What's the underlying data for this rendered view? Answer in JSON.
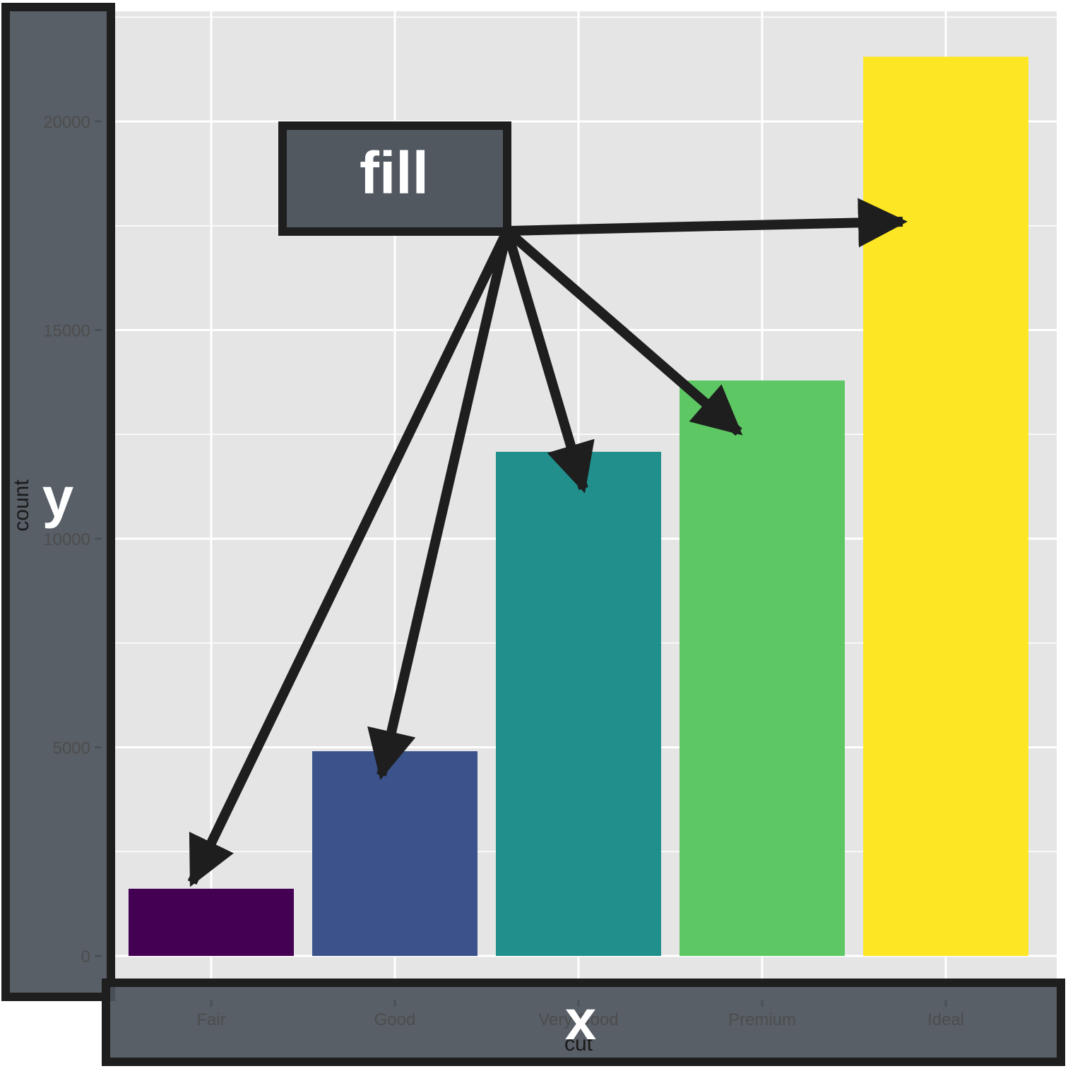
{
  "chart_data": {
    "type": "bar",
    "categories": [
      "Fair",
      "Good",
      "Very Good",
      "Premium",
      "Ideal"
    ],
    "values": [
      1610,
      4906,
      12082,
      13791,
      21551
    ],
    "colors": [
      "#440154",
      "#3b528b",
      "#21908c",
      "#5dc863",
      "#fde725"
    ],
    "xlabel": "cut",
    "ylabel": "count",
    "ylim": [
      0,
      22700
    ],
    "yticks": [
      0,
      5000,
      10000,
      15000,
      20000
    ],
    "grid": true,
    "panel_background": "#e5e5e5"
  },
  "annotations": {
    "y_box_label": "y",
    "x_box_label": "x",
    "fill_box_label": "fill",
    "box_color": "#4b535b",
    "arrow_color": "#1e1e1e"
  }
}
